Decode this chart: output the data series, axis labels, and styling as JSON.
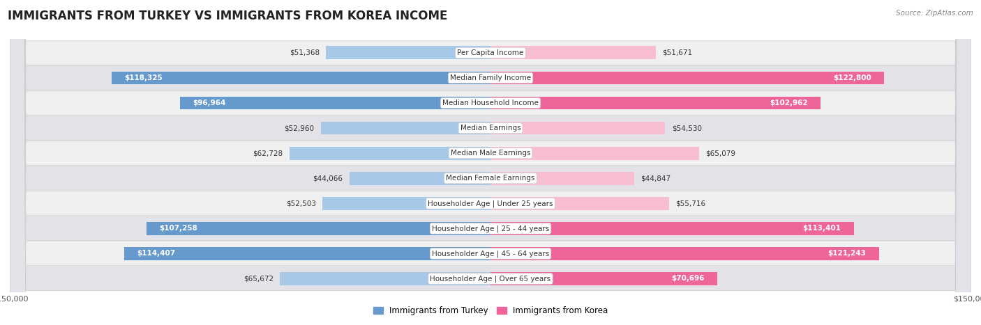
{
  "title": "IMMIGRANTS FROM TURKEY VS IMMIGRANTS FROM KOREA INCOME",
  "source": "Source: ZipAtlas.com",
  "categories": [
    "Per Capita Income",
    "Median Family Income",
    "Median Household Income",
    "Median Earnings",
    "Median Male Earnings",
    "Median Female Earnings",
    "Householder Age | Under 25 years",
    "Householder Age | 25 - 44 years",
    "Householder Age | 45 - 64 years",
    "Householder Age | Over 65 years"
  ],
  "turkey_values": [
    51368,
    118325,
    96964,
    52960,
    62728,
    44066,
    52503,
    107258,
    114407,
    65672
  ],
  "korea_values": [
    51671,
    122800,
    102962,
    54530,
    65079,
    44847,
    55716,
    113401,
    121243,
    70696
  ],
  "turkey_labels": [
    "$51,368",
    "$118,325",
    "$96,964",
    "$52,960",
    "$62,728",
    "$44,066",
    "$52,503",
    "$107,258",
    "$114,407",
    "$65,672"
  ],
  "korea_labels": [
    "$51,671",
    "$122,800",
    "$102,962",
    "$54,530",
    "$65,079",
    "$44,847",
    "$55,716",
    "$113,401",
    "$121,243",
    "$70,696"
  ],
  "turkey_color_light": "#a8c8e8",
  "turkey_color_dark": "#6699cc",
  "korea_color_light": "#f7bdd0",
  "korea_color_dark": "#ee6699",
  "max_value": 150000,
  "background_color": "#ffffff",
  "row_light_color": "#f0f0f0",
  "row_dark_color": "#e2e2e8",
  "bar_height": 0.52,
  "label_inside_threshold": 70000,
  "title_fontsize": 12,
  "val_fontsize": 7.5,
  "cat_fontsize": 7.5
}
